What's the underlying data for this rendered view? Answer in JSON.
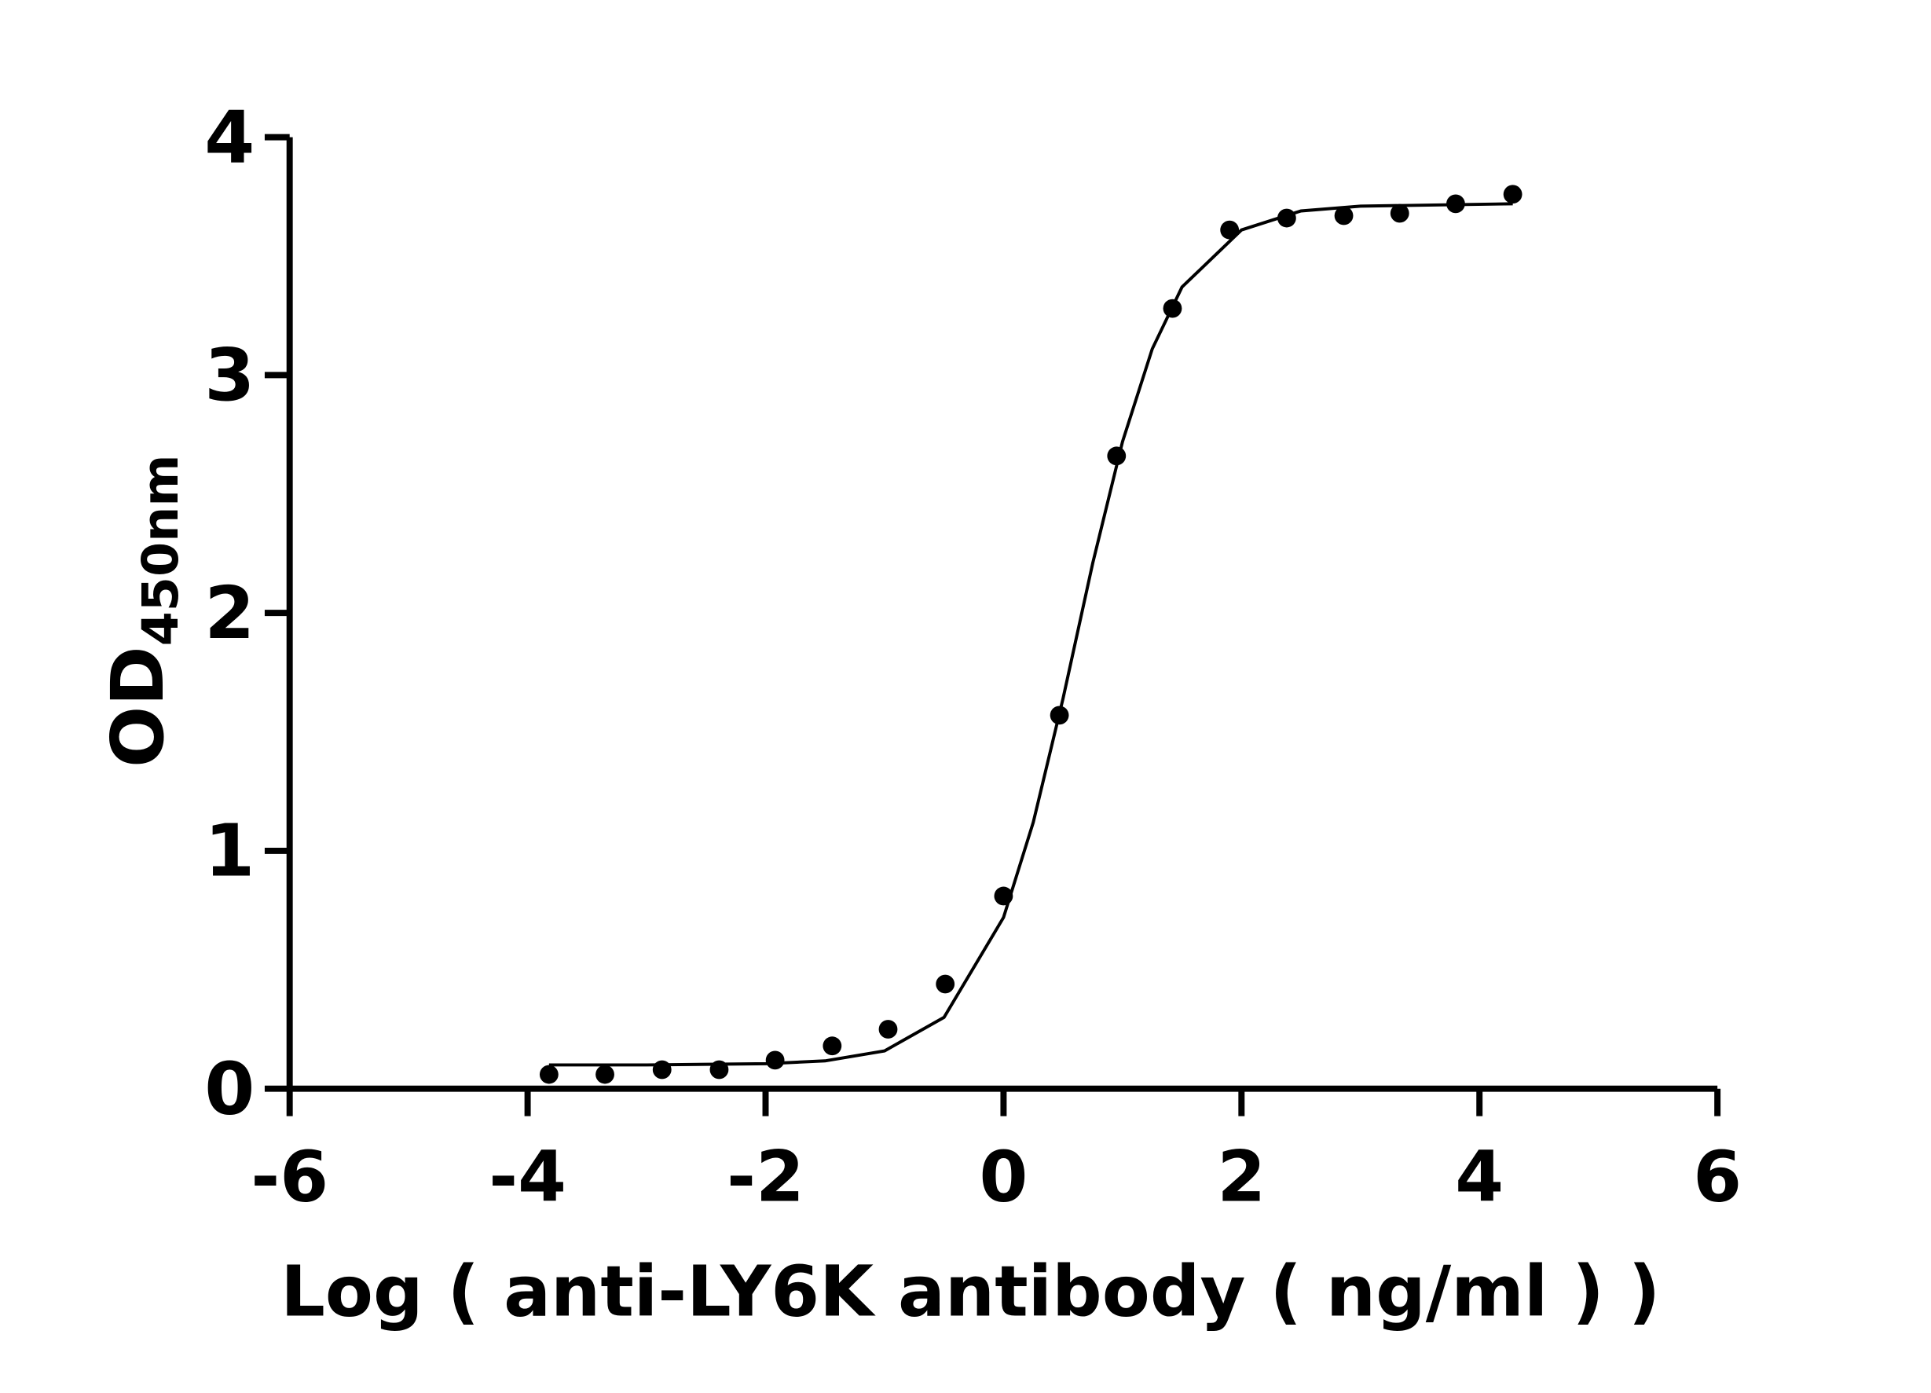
{
  "chart_data": {
    "type": "scatter",
    "ylabel": "OD",
    "ylabel_subscript": "450nm",
    "xlabel": "Log ( anti-LY6K antibody ( ng/ml )    )",
    "xlim": [
      -6,
      6
    ],
    "xticks": [
      -6,
      -4,
      -2,
      0,
      2,
      4,
      6
    ],
    "ylim": [
      0,
      4
    ],
    "yticks": [
      0,
      1,
      2,
      3,
      4
    ],
    "series": [
      {
        "color": "#000000",
        "x": [
          -3.82,
          -3.35,
          -2.87,
          -2.39,
          -1.92,
          -1.44,
          -0.97,
          -0.49,
          0.0,
          0.47,
          0.95,
          1.42,
          1.9,
          2.38,
          2.86,
          3.33,
          3.8,
          4.28
        ],
        "values": [
          0.06,
          0.06,
          0.08,
          0.08,
          0.12,
          0.18,
          0.25,
          0.44,
          0.81,
          1.57,
          2.66,
          3.28,
          3.61,
          3.66,
          3.67,
          3.68,
          3.72,
          3.76
        ]
      },
      {
        "color": "#000000",
        "line": true,
        "x": [
          -3.82,
          -3,
          -2,
          -1.5,
          -1,
          -0.5,
          0,
          0.25,
          0.5,
          0.75,
          1,
          1.25,
          1.5,
          2,
          2.5,
          3,
          4.28
        ],
        "values": [
          0.1,
          0.1,
          0.105,
          0.117,
          0.159,
          0.3,
          0.72,
          1.12,
          1.64,
          2.21,
          2.72,
          3.11,
          3.37,
          3.61,
          3.69,
          3.71,
          3.72
        ]
      }
    ]
  }
}
